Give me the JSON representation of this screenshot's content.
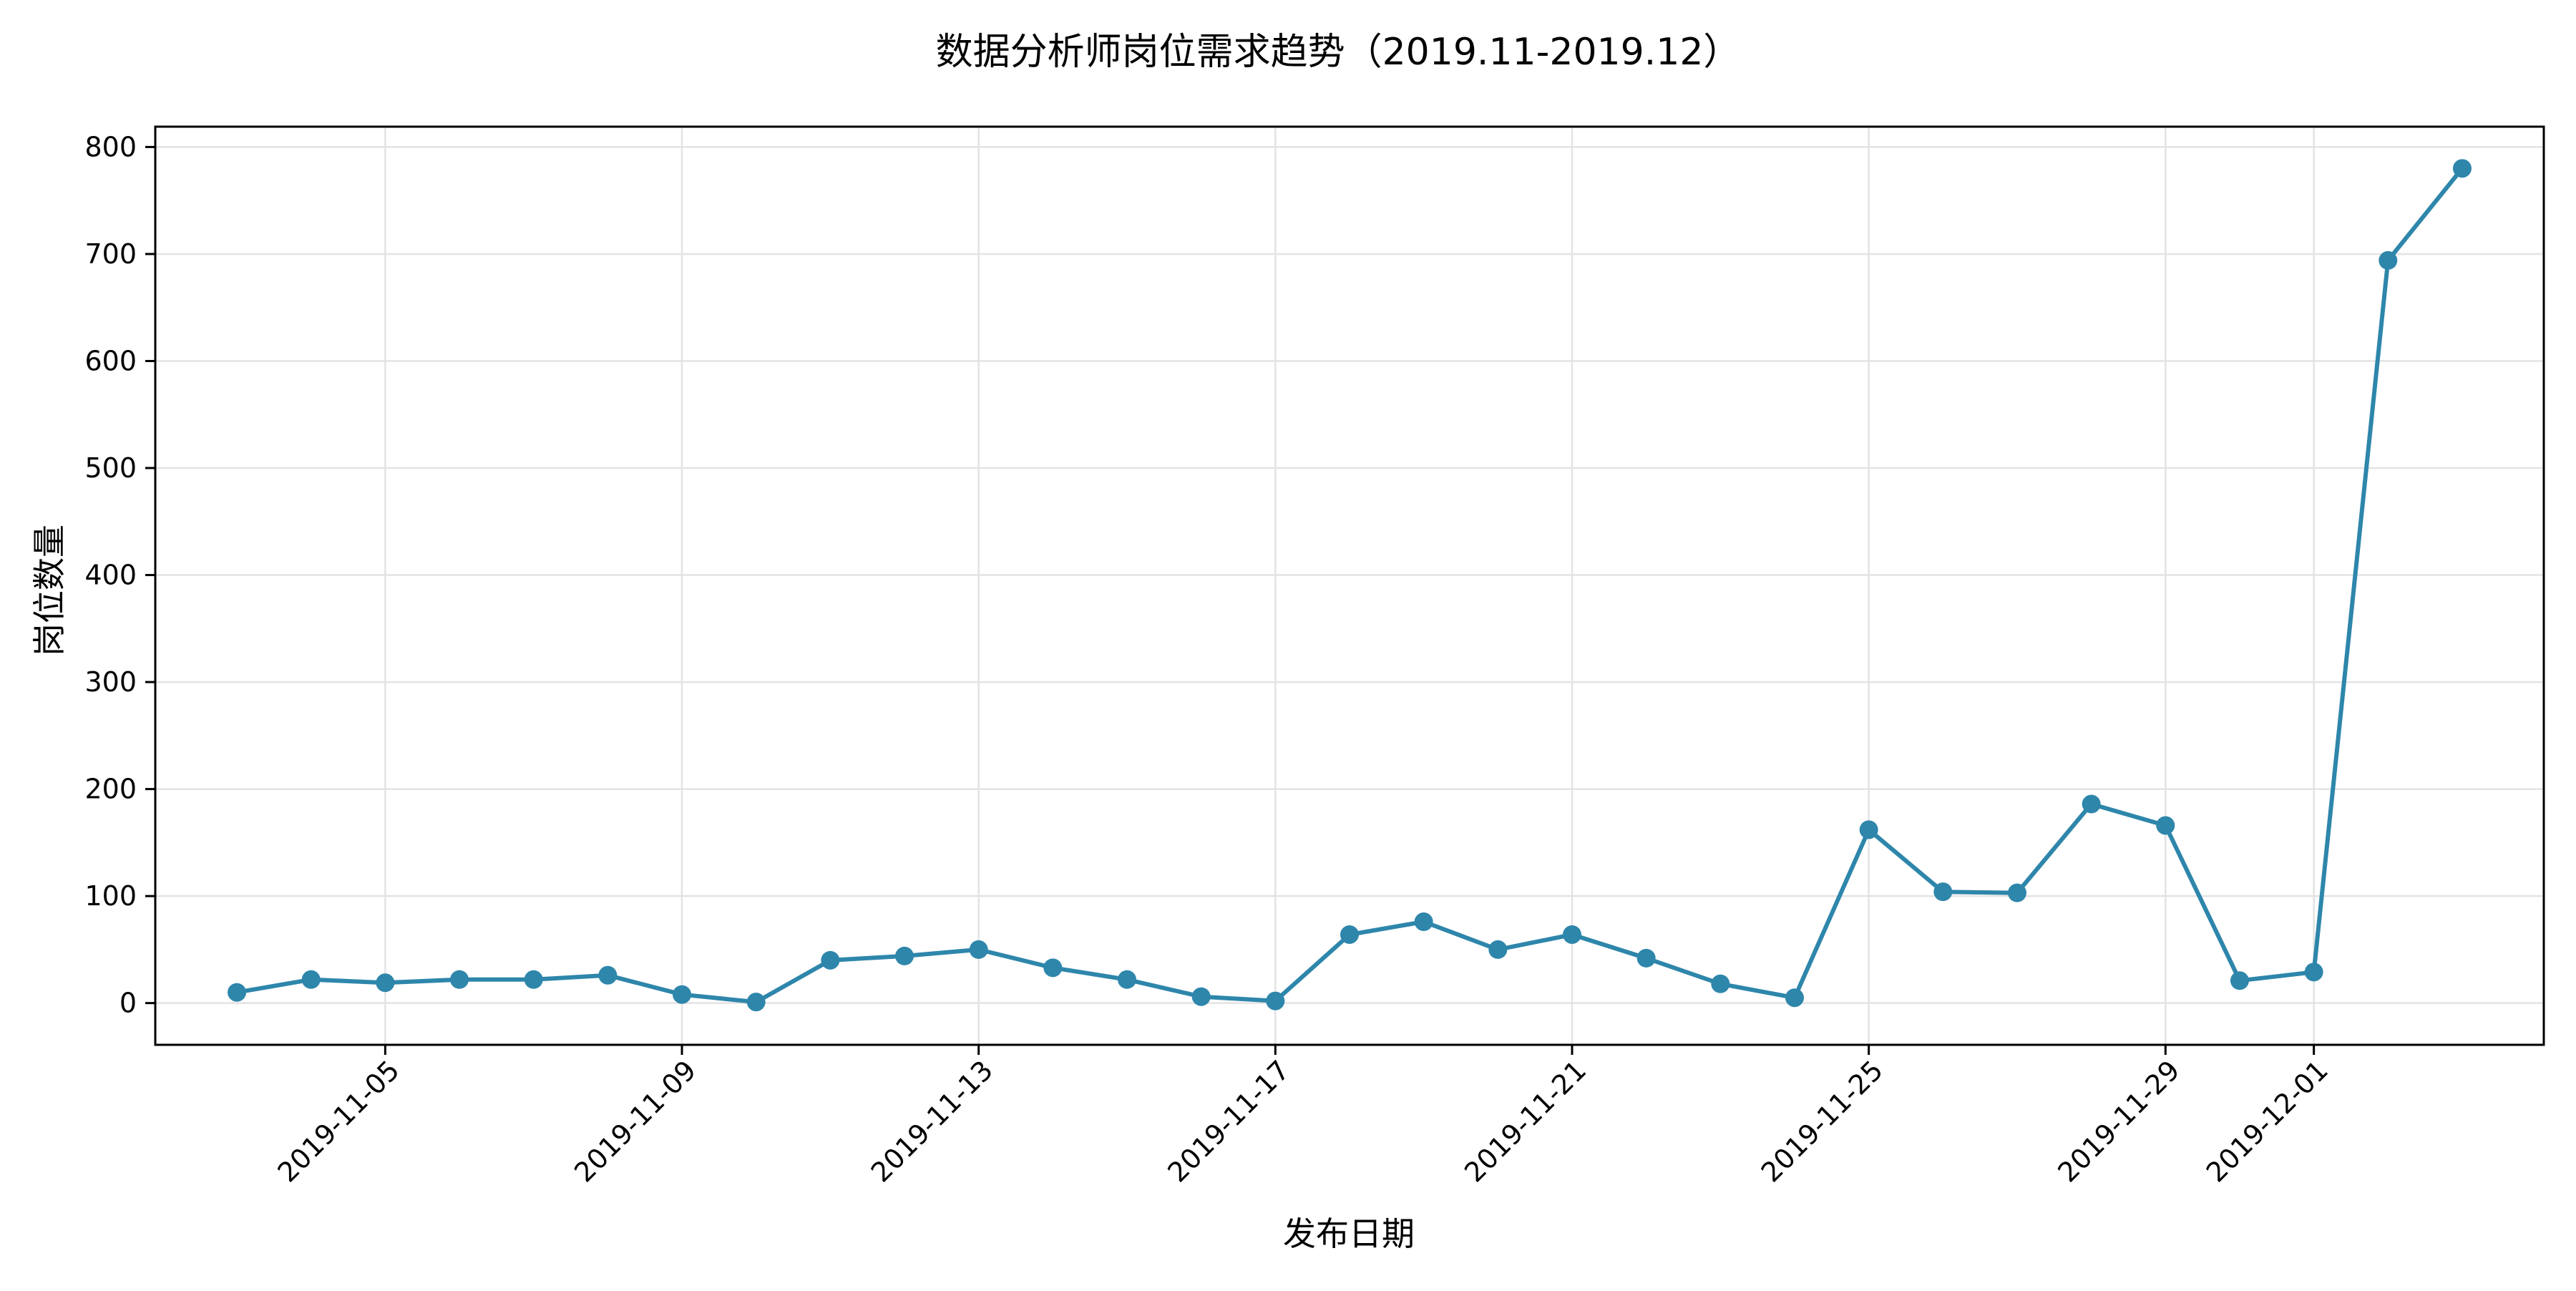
{
  "chart_data": {
    "type": "line",
    "title": "数据分析师岗位需求趋势（2019.11-2019.12）",
    "xlabel": "发布日期",
    "ylabel": "岗位数量",
    "x": [
      "2019-11-03",
      "2019-11-04",
      "2019-11-05",
      "2019-11-06",
      "2019-11-07",
      "2019-11-08",
      "2019-11-09",
      "2019-11-10",
      "2019-11-11",
      "2019-11-12",
      "2019-11-13",
      "2019-11-14",
      "2019-11-15",
      "2019-11-16",
      "2019-11-17",
      "2019-11-18",
      "2019-11-19",
      "2019-11-20",
      "2019-11-21",
      "2019-11-22",
      "2019-11-23",
      "2019-11-24",
      "2019-11-25",
      "2019-11-26",
      "2019-11-27",
      "2019-11-28",
      "2019-11-29",
      "2019-11-30",
      "2019-12-01",
      "2019-12-02",
      "2019-12-03"
    ],
    "series": [
      {
        "values": [
          10,
          22,
          19,
          22,
          22,
          26,
          8,
          1,
          40,
          44,
          50,
          33,
          22,
          6,
          2,
          64,
          76,
          50,
          64,
          42,
          18,
          5,
          162,
          104,
          103,
          186,
          166,
          21,
          29,
          694,
          780
        ],
        "color": "#2e86ab"
      }
    ],
    "x_ticks": [
      "2019-11-05",
      "2019-11-09",
      "2019-11-13",
      "2019-11-17",
      "2019-11-21",
      "2019-11-25",
      "2019-11-29",
      "2019-12-01"
    ],
    "y_ticks": [
      0,
      100,
      200,
      300,
      400,
      500,
      600,
      700,
      800
    ],
    "xlim": [
      "2019-11-01T21:36",
      "2019-12-04T02:24"
    ],
    "ylim": [
      -39,
      819
    ],
    "grid": true,
    "legend": "none"
  }
}
